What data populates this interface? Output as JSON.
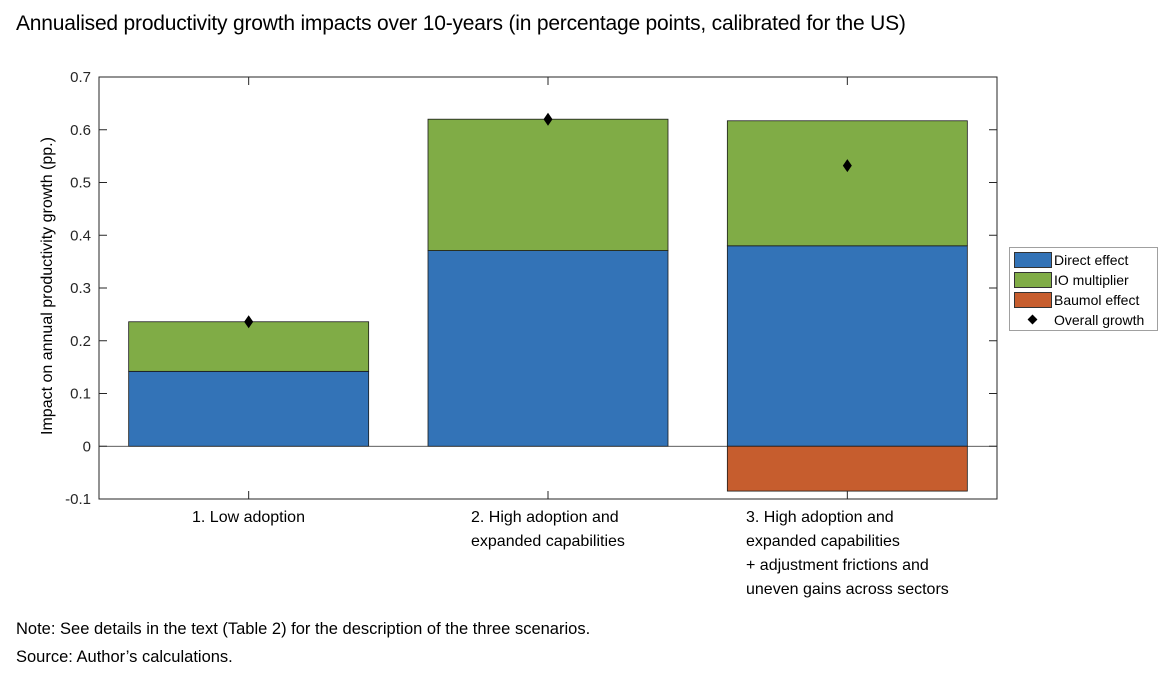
{
  "title": "Annualised productivity growth impacts over 10-years (in percentage points, calibrated for the US)",
  "note": "Note: See details in the text (Table 2) for the description of the three scenarios.",
  "source": "Source: Author’s calculations.",
  "chart_data": {
    "type": "bar",
    "stacked": true,
    "ylabel": "Impact on annual productivity growth (pp.)",
    "ylim": [
      -0.1,
      0.7
    ],
    "yticks": [
      -0.1,
      0,
      0.1,
      0.2,
      0.3,
      0.4,
      0.5,
      0.6,
      0.7
    ],
    "ytick_labels": [
      "-0.1",
      "0",
      "0.1",
      "0.2",
      "0.3",
      "0.4",
      "0.5",
      "0.6",
      "0.7"
    ],
    "grid": false,
    "legend_position": "right",
    "categories": [
      [
        "1. Low adoption"
      ],
      [
        "2. High adoption and",
        "expanded capabilities"
      ],
      [
        "3. High adoption and",
        "expanded capabilities",
        "+ adjustment frictions and",
        "uneven gains across sectors"
      ]
    ],
    "series": [
      {
        "name": "Direct effect",
        "color": "#3373b7",
        "values": [
          0.142,
          0.371,
          0.38
        ]
      },
      {
        "name": "IO multiplier",
        "color": "#80ac46",
        "values": [
          0.094,
          0.249,
          0.237
        ]
      },
      {
        "name": "Baumol effect",
        "color": "#c65d2e",
        "values": [
          0,
          0,
          -0.085
        ]
      }
    ],
    "markers": {
      "name": "Overall growth",
      "shape": "diamond",
      "color": "#000000",
      "values": [
        0.236,
        0.62,
        0.532
      ]
    }
  }
}
